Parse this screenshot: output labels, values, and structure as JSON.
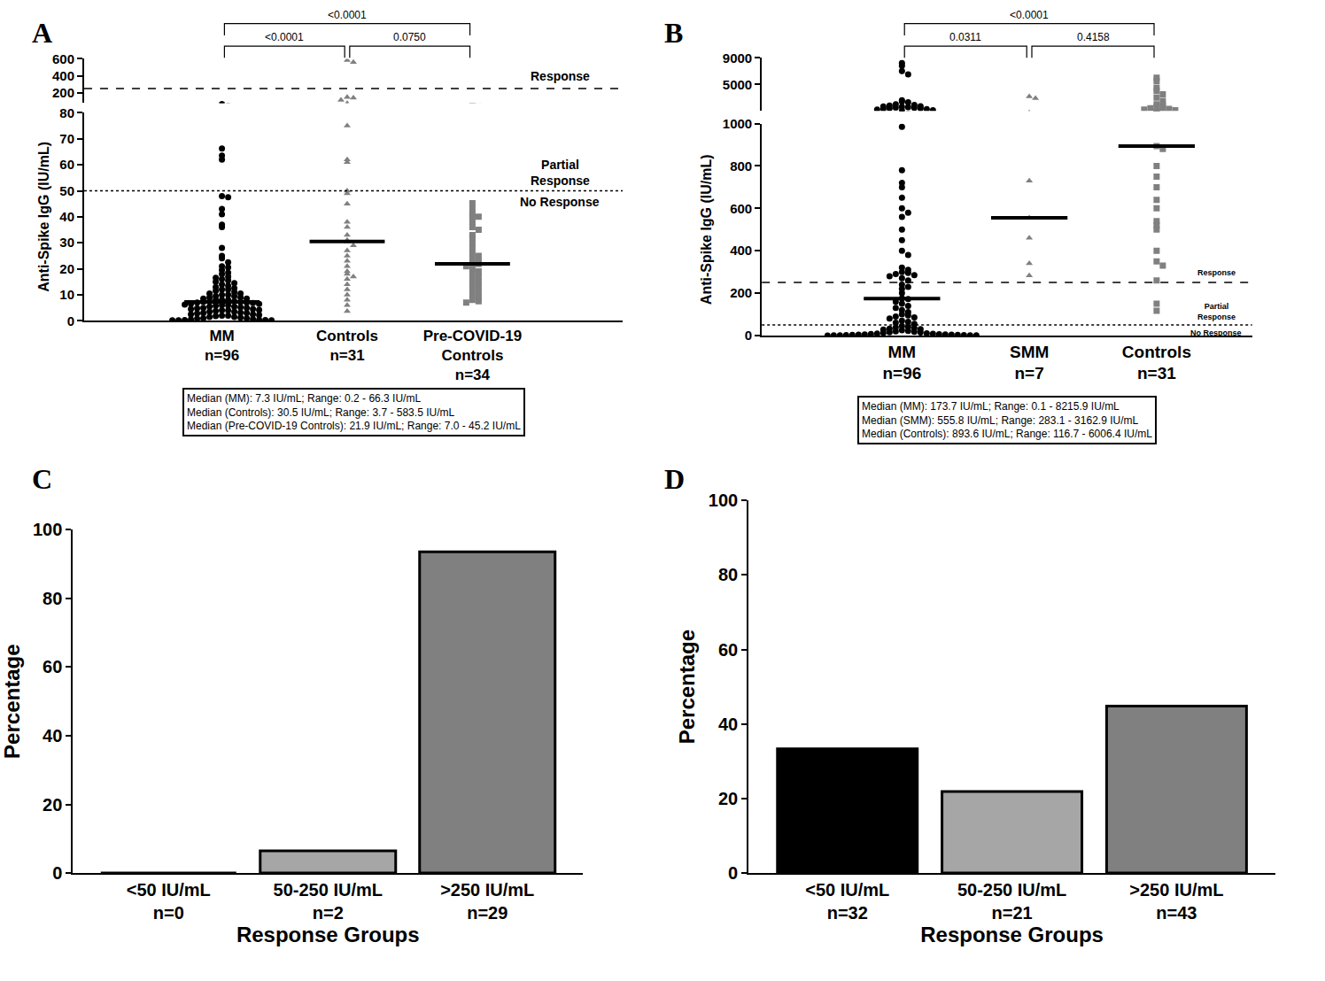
{
  "chart_data": [
    {
      "panel": "A",
      "type": "scatter",
      "y_label": "Anti-Spike IgG (IU/mL)",
      "categories": [
        "MM\nn=96",
        "Controls\nn=31",
        "Pre-COVID-19\nControls\nn=34"
      ],
      "values": [
        [
          66.3,
          63.5,
          62.0,
          48.0,
          47.5,
          43.0,
          41.0,
          37.0,
          36.0,
          28.0,
          25.0,
          24.0,
          22.5,
          21.0,
          20.5,
          19.5,
          18.5,
          18.0,
          17.0,
          16.5,
          16.0,
          15.5,
          15.0,
          14.5,
          14.0,
          13.5,
          13.0,
          12.5,
          12.0,
          12.0,
          11.5,
          11.0,
          10.5,
          10.5,
          10.0,
          10.0,
          9.5,
          9.5,
          9.0,
          9.0,
          8.5,
          8.5,
          8.0,
          8.0,
          8.0,
          7.5,
          7.4,
          7.3,
          7.3,
          7.0,
          7.0,
          6.8,
          6.5,
          6.5,
          6.2,
          6.0,
          6.0,
          5.8,
          5.5,
          5.5,
          5.2,
          5.0,
          5.0,
          4.8,
          4.5,
          4.5,
          4.2,
          4.0,
          4.0,
          3.8,
          3.5,
          3.5,
          3.2,
          3.0,
          3.0,
          2.8,
          2.5,
          2.5,
          2.2,
          2.0,
          2.0,
          1.8,
          1.5,
          1.5,
          1.2,
          1.0,
          1.0,
          0.8,
          0.6,
          0.5,
          0.4,
          0.3,
          0.3,
          0.2,
          0.2,
          0.2
        ],
        [
          583.5,
          560,
          150,
          140,
          115,
          75,
          62,
          61,
          50,
          49,
          45,
          38,
          36,
          33,
          31,
          30.5,
          29,
          27,
          25,
          23,
          21,
          19,
          18,
          17,
          16,
          14,
          12,
          10,
          8,
          6,
          3.7
        ],
        [
          45.2,
          43,
          41,
          40,
          40,
          38,
          36,
          35,
          33,
          32,
          30,
          28,
          26,
          25,
          24,
          23,
          22,
          21.8,
          21,
          20,
          19,
          18,
          17,
          16,
          15,
          14,
          13,
          12,
          11,
          10,
          9,
          8,
          7.5,
          7.0
        ]
      ],
      "medians": [
        7.3,
        30.5,
        21.9
      ],
      "colors": [
        "#000000",
        "#808080",
        "#808080"
      ],
      "markers": [
        "circle",
        "triangle-up",
        "square"
      ],
      "ylim": [
        0,
        80
      ],
      "yticks": [
        0,
        10,
        20,
        30,
        40,
        50,
        60,
        70,
        80
      ],
      "y2lim": [
        80,
        600
      ],
      "y2ticks": [
        200,
        400,
        600
      ],
      "thresholds": [
        {
          "value": 250,
          "line_style": "dash"
        },
        {
          "value": 50,
          "line_style": "dot"
        }
      ],
      "region_labels": [
        "Response",
        "Partial\nResponse",
        "No Response"
      ],
      "comparisons": [
        {
          "between": [
            "MM\nn=96",
            "Controls\nn=31"
          ],
          "label": "<0.0001"
        },
        {
          "between": [
            "Controls\nn=31",
            "Pre-COVID-19\nControls\nn=34"
          ],
          "label": "0.0750"
        },
        {
          "between": [
            "MM\nn=96",
            "Pre-COVID-19\nControls\nn=34"
          ],
          "label": "<0.0001"
        }
      ],
      "notes": [
        "Median (MM): 7.3 IU/mL; Range: 0.2 - 66.3 IU/mL",
        "Median (Controls): 30.5 IU/mL; Range: 3.7 - 583.5 IU/mL",
        "Median (Pre-COVID-19 Controls): 21.9 IU/mL; Range: 7.0 - 45.2 IU/mL"
      ],
      "grid": false
    },
    {
      "panel": "B",
      "type": "scatter",
      "y_label": "Anti-Spike IgG (IU/mL)",
      "categories": [
        "MM\nn=96",
        "SMM\nn=7",
        "Controls\nn=31"
      ],
      "values": [
        [
          8215.9,
          7800,
          7000,
          6500,
          2600,
          2400,
          2300,
          2000,
          1900,
          1800,
          1700,
          1650,
          1600,
          1550,
          1500,
          1450,
          1400,
          1350,
          1300,
          1250,
          1200,
          1100,
          985,
          780,
          720,
          700,
          650,
          600,
          580,
          560,
          500,
          450,
          400,
          380,
          320,
          310,
          300,
          295,
          290,
          285,
          280,
          270,
          260,
          240,
          230,
          220,
          200,
          175,
          172.4,
          160,
          150,
          140,
          130,
          120,
          110,
          100,
          95,
          90,
          85,
          80,
          70,
          65,
          60,
          55,
          45,
          40,
          38,
          35,
          32,
          30,
          28,
          25,
          22,
          20,
          18,
          15,
          14,
          12,
          10,
          9,
          8,
          7,
          6,
          5,
          4.5,
          4,
          3.5,
          3,
          2.5,
          2,
          1.5,
          1.2,
          1,
          0.5,
          0.3,
          0.1
        ],
        [
          3162.9,
          2900,
          730,
          555.8,
          460,
          340,
          283.1
        ],
        [
          6006.4,
          5500,
          4500,
          4000,
          3500,
          3000,
          2500,
          2000,
          1800,
          1600,
          1500,
          1400,
          1300,
          1200,
          1100,
          893.6,
          880,
          800,
          750,
          700,
          640,
          600,
          540,
          520,
          500,
          400,
          350,
          330,
          260,
          150,
          116.7
        ]
      ],
      "medians": [
        173.7,
        555.8,
        893.6
      ],
      "colors": [
        "#000000",
        "#808080",
        "#808080"
      ],
      "markers": [
        "circle",
        "triangle-up",
        "square"
      ],
      "ylim": [
        0,
        1000
      ],
      "yticks": [
        0,
        200,
        400,
        600,
        800,
        1000
      ],
      "y2lim": [
        1000,
        9000
      ],
      "y2ticks": [
        5000,
        9000
      ],
      "thresholds": [
        {
          "value": 250,
          "line_style": "dash"
        },
        {
          "value": 50,
          "line_style": "dot"
        }
      ],
      "region_labels": [
        "Response",
        "Partial\nResponse",
        "No Response"
      ],
      "comparisons": [
        {
          "between": [
            "MM\nn=96",
            "SMM\nn=7"
          ],
          "label": "0.0311"
        },
        {
          "between": [
            "SMM\nn=7",
            "Controls\nn=31"
          ],
          "label": "0.4158"
        },
        {
          "between": [
            "MM\nn=96",
            "Controls\nn=31"
          ],
          "label": "<0.0001"
        }
      ],
      "notes": [
        "Median (MM): 173.7 IU/mL; Range: 0.1 - 8215.9 IU/mL",
        "Median (SMM): 555.8 IU/mL; Range: 283.1 - 3162.9 IU/mL",
        "Median (Controls): 893.6 IU/mL; Range: 116.7 - 6006.4 IU/mL"
      ],
      "grid": false
    },
    {
      "panel": "C",
      "type": "bar",
      "x_label": "Response Groups",
      "y_label": "Percentage",
      "categories": [
        "<50 IU/mL\nn=0",
        "50-250 IU/mL\nn=2",
        ">250 IU/mL\nn=29"
      ],
      "values": [
        0,
        6.45,
        93.55
      ],
      "colors": [
        "#000000",
        "#a6a6a6",
        "#808080"
      ],
      "ylim": [
        0,
        100
      ],
      "yticks": [
        0,
        20,
        40,
        60,
        80,
        100
      ],
      "grid": false
    },
    {
      "panel": "D",
      "type": "bar",
      "x_label": "Response Groups",
      "y_label": "Percentage",
      "categories": [
        "<50 IU/mL\nn=32",
        "50-250 IU/mL\nn=21",
        ">250 IU/mL\nn=43"
      ],
      "values": [
        33.33,
        21.88,
        44.79
      ],
      "colors": [
        "#000000",
        "#a6a6a6",
        "#808080"
      ],
      "ylim": [
        0,
        100
      ],
      "yticks": [
        0,
        20,
        40,
        60,
        80,
        100
      ],
      "grid": false
    }
  ]
}
